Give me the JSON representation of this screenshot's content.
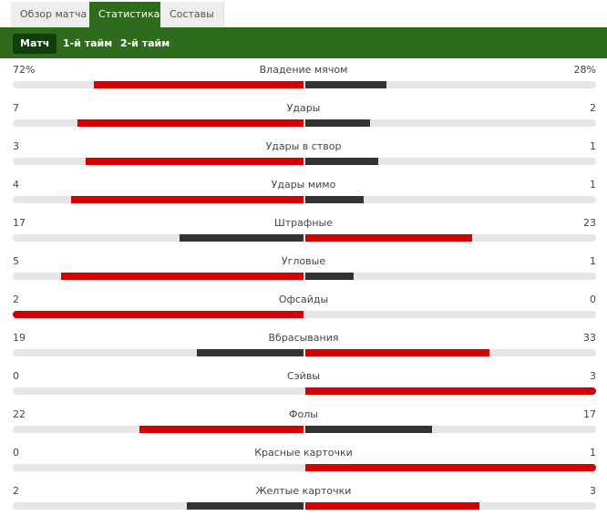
{
  "tabs": [
    "Обзор матча",
    "Статистика",
    "Составы"
  ],
  "active_tab": 1,
  "subtabs": [
    "Матч",
    "1-й тайм",
    "2-й тайм"
  ],
  "active_subtab": 0,
  "lead_color": "#d20000",
  "trail_color": "#333333",
  "stats": [
    {
      "label": "Владение мячом",
      "values": [
        72,
        28
      ],
      "value_labels": [
        "72%",
        "28%"
      ]
    },
    {
      "label": "Удары",
      "values": [
        7,
        2
      ]
    },
    {
      "label": "Удары в створ",
      "values": [
        3,
        1
      ]
    },
    {
      "label": "Удары мимо",
      "values": [
        4,
        1
      ]
    },
    {
      "label": "Штрафные",
      "values": [
        17,
        23
      ]
    },
    {
      "label": "Угловые",
      "values": [
        5,
        1
      ]
    },
    {
      "label": "Офсайды",
      "values": [
        2,
        0
      ]
    },
    {
      "label": "Вбрасывания",
      "values": [
        19,
        33
      ]
    },
    {
      "label": "Сэйвы",
      "values": [
        0,
        3
      ]
    },
    {
      "label": "Фолы",
      "values": [
        22,
        17
      ]
    },
    {
      "label": "Красные карточки",
      "values": [
        0,
        1
      ]
    },
    {
      "label": "Желтые карточки",
      "values": [
        2,
        3
      ]
    }
  ]
}
